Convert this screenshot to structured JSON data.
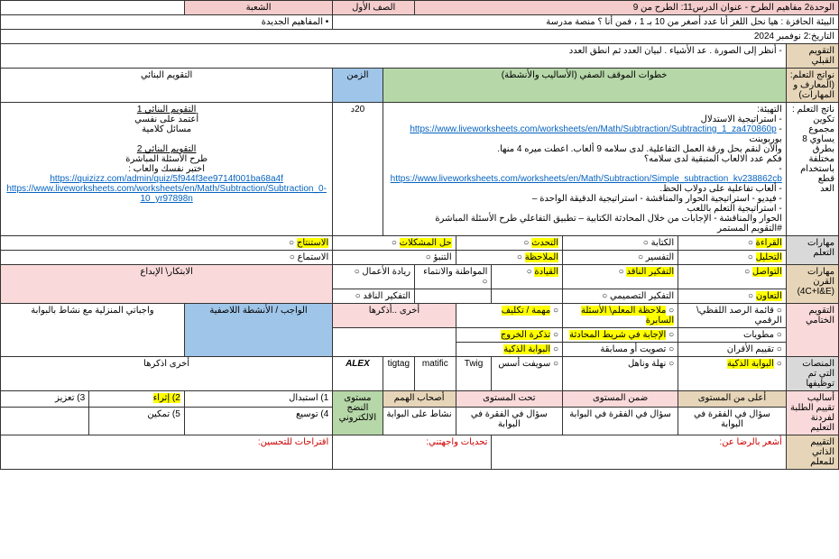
{
  "r1": {
    "unit": "الوحدة2 مفاهيم الطرح - عنوان الدرس11: الطرح من 9",
    "grade_lbl": "الصف الأول",
    "section_lbl": "الشعبة"
  },
  "r2": {
    "env": "البيئة الحافزة : هيا نحل اللغز أنا عدد أصغر من 10 بـ 1 ، فمن أنا ؟ منصة مدرسة",
    "new_concepts_lbl": "• المفاهيم الجديدة"
  },
  "r3": {
    "date": "التاريخ:2 نوفمبر 2024"
  },
  "r4": {
    "pre_eval": "التقويم القبلي",
    "pre_txt": "- أنظر إلى الصورة . عد الأشياء . لبيان العدد ثم انطق العدد"
  },
  "r5": {
    "outcomes_lbl": "نواتج التعلم:(المعارف و المهارات)",
    "steps_lbl": "خطوات الموقف الصفي (الأساليب والأنشطة)",
    "time_lbl": "الزمن",
    "form_eval_lbl": "التقويم البنائي"
  },
  "outcomes": [
    "ناتج التعلم :",
    "تكوين مجموع",
    "يساوي 8 بطرق",
    "مختلفة",
    "باستخدام قطع",
    "العد"
  ],
  "steps": {
    "prep": "التهيئة:",
    "l1": "- استراتيجية الاستدلال",
    "link1": "https://www.liveworksheets.com/worksheets/en/Math/Subtraction/Subtracting_1_za470860p",
    "pp": "بوربوينت",
    "l2": "والآن لنقم بحل ورقة العمل التفاعلية. لدى سلامه 9 ألعاب. اعطت ميره 4 منها.",
    "l3": "فكم عدد الالعاب المتبقية لدى سلامه؟",
    "link2": "https://www.liveworksheets.com/worksheets/en/Math/Subtraction/Simple_subtraction_kv238862cb",
    "l4": "- ألعاب تفاعلية على دولاب الحظ.",
    "l5": "- فيديو - استراتيجية الحوار والمناقشة - استراتيجية الدقيقة الواحدة –",
    "l6": "- استراتيجية التعلم باللعب",
    "l7": "الحوار والمناقشة - الإجابات من خلال المحادثة الكتابية – تطبيق التفاعلي طرح الأسئلة المباشرة",
    "l8": "#التقويم المستمر"
  },
  "time": "20د",
  "form_eval": {
    "t1": "التقويم البنائي 1",
    "a1": "أعتمد على نفسي",
    "a2": "مسائل كلامية",
    "t2": "التقويم البنائي 2",
    "b1": "طرح الأسئلة المباشرة",
    "b2": "اختبر نفسك والعاب :",
    "link1": "https://quizizz.com/admin/quiz/5f944f3ee9714f001ba68a4f",
    "link2": "https://www.liveworksheets.com/worksheets/en/Math/Subtraction/Subtraction_0-10_yr97898n"
  },
  "skills": {
    "lbl": "مهارات التعلم",
    "row1": [
      "القراءة",
      "الكتابة",
      "التحدث",
      "حل المشكلات",
      "الاستنتاج"
    ],
    "row2": [
      "التحليل",
      "التفسير",
      "الملاحظة",
      "التنبؤ",
      "الاستماع"
    ]
  },
  "c21": {
    "lbl": "مهارات القرن (4C+I&E)",
    "items": [
      "التواصل",
      "التفكير الناقد",
      "القيادة",
      "المواطنة والانتماء",
      "ريادة الأعمال",
      "الابتكار\\ الإبداع"
    ],
    "items2": [
      "التعاون",
      "التفكير التصميمي",
      "",
      "",
      "التفكير الناقد",
      ""
    ]
  },
  "final": {
    "lbl": "التقويم الختامي",
    "c1": [
      "قائمة الرصد اللفظي\\ الرقمي",
      "مطويات",
      "تقييم الأقران"
    ],
    "c2": [
      "ملاحظة المعلم\\ الأسئلة السابرة",
      "الإجابة في شريط المحادثة",
      "تصويت أو مسابقة"
    ],
    "c3": [
      "مهمة / تكليف",
      "تذكرة الخروج",
      "البوابة الذكية"
    ],
    "c4_lbl": "أخرى ..أذكرها",
    "hw_lbl": "الواجب / الأنشطة اللاصفية",
    "hw": "واجباتي المنزلية مع نشاط بالبوابة"
  },
  "platforms": {
    "lbl": "المنصات التي تم توظيفها",
    "items": [
      "البوابة الذكية",
      "نهلة وناهل",
      "سويفت أسس",
      "Twig",
      "matific",
      "tigtag",
      "ALEX",
      "أخرى اذكرها"
    ]
  },
  "diff": {
    "lbl": "أساليب تقييم الطلبة لفردنة التعليم",
    "cols": [
      "أعلى من المستوى",
      "ضمن المستوى",
      "تحت المستوى",
      "أصحاب الهمم",
      "مستوى النضج الالكتروني"
    ],
    "txt": [
      "سؤال في الفقرة في البوابة",
      "سؤال في الفقرة في البوابة",
      "سؤال في الفقرة في البوابة",
      "نشاط على البوابة",
      ""
    ],
    "nums": [
      "1) استبدال",
      "2) إثراء",
      "3) تعزيز",
      "4) توسيع",
      "5) تمكين"
    ]
  },
  "self": {
    "lbl": "التقييم الذاتي للمعلم",
    "a": "أشعر بالرضا عن:",
    "b": "تحديات واجهتني:",
    "c": "اقتراحات للتحسين:"
  }
}
